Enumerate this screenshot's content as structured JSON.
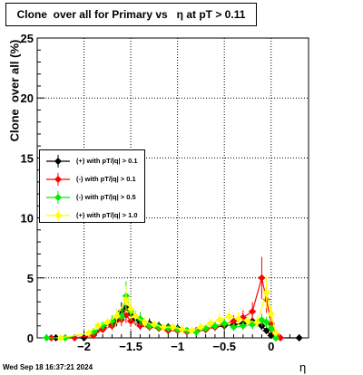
{
  "title": "Clone  over all for Primary vs   η at pT > 0.11",
  "footer": "Wed Sep 18 16:37:21 2024",
  "chart_data": {
    "type": "scatter",
    "xlabel": "η",
    "ylabel": "Clone  over all (%)",
    "xlim": [
      -2.5,
      0.4
    ],
    "ylim": [
      0,
      25
    ],
    "x_ticks": [
      -2,
      -1.5,
      -1,
      -0.5,
      0
    ],
    "x_tick_labels": [
      "−2",
      "−1.5",
      "−1",
      "−0.5",
      "0"
    ],
    "y_ticks": [
      0,
      5,
      10,
      15,
      20,
      25
    ],
    "y_tick_labels": [
      "0",
      "5",
      "10",
      "15",
      "20",
      "25"
    ],
    "grid": true,
    "legend_position": "left-middle",
    "series": [
      {
        "name": "(+) with pT/|q| > 0.1",
        "color": "#000000",
        "points": [
          [
            -2.3,
            0
          ],
          [
            -2.0,
            0
          ],
          [
            -1.9,
            0.3
          ],
          [
            -1.8,
            0.9
          ],
          [
            -1.7,
            1.2
          ],
          [
            -1.65,
            1.5
          ],
          [
            -1.6,
            2.2
          ],
          [
            -1.55,
            2.5
          ],
          [
            -1.5,
            2.0
          ],
          [
            -1.45,
            1.6
          ],
          [
            -1.4,
            1.3
          ],
          [
            -1.3,
            1.2
          ],
          [
            -1.2,
            1.0
          ],
          [
            -1.1,
            0.9
          ],
          [
            -1.0,
            0.8
          ],
          [
            -0.9,
            0.6
          ],
          [
            -0.8,
            0.5
          ],
          [
            -0.7,
            0.7
          ],
          [
            -0.6,
            0.9
          ],
          [
            -0.5,
            1.0
          ],
          [
            -0.4,
            1.1
          ],
          [
            -0.3,
            1.2
          ],
          [
            -0.2,
            1.4
          ],
          [
            -0.1,
            1.0
          ],
          [
            -0.05,
            0.6
          ],
          [
            0.0,
            0.2
          ],
          [
            0.05,
            0
          ],
          [
            0.3,
            0
          ]
        ]
      },
      {
        "name": "(-) with pT/|q| > 0.1",
        "color": "#ff0000",
        "points": [
          [
            -2.35,
            0
          ],
          [
            -2.1,
            0
          ],
          [
            -1.9,
            0.2
          ],
          [
            -1.8,
            0.7
          ],
          [
            -1.7,
            1.0
          ],
          [
            -1.6,
            1.5
          ],
          [
            -1.55,
            1.9
          ],
          [
            -1.5,
            1.4
          ],
          [
            -1.4,
            1.0
          ],
          [
            -1.3,
            0.9
          ],
          [
            -1.2,
            0.8
          ],
          [
            -1.1,
            0.6
          ],
          [
            -1.0,
            0.6
          ],
          [
            -0.9,
            0.5
          ],
          [
            -0.8,
            0.6
          ],
          [
            -0.7,
            0.7
          ],
          [
            -0.6,
            0.9
          ],
          [
            -0.5,
            1.1
          ],
          [
            -0.4,
            1.4
          ],
          [
            -0.3,
            1.7
          ],
          [
            -0.2,
            2.2
          ],
          [
            -0.1,
            5.0
          ],
          [
            -0.05,
            3.2
          ],
          [
            0.0,
            1.2
          ],
          [
            0.05,
            0.3
          ],
          [
            0.1,
            0
          ]
        ]
      },
      {
        "name": "(-) with pT/|q| > 0.5",
        "color": "#00ee00",
        "points": [
          [
            -2.4,
            0
          ],
          [
            -2.2,
            0
          ],
          [
            -1.9,
            0.5
          ],
          [
            -1.8,
            1.0
          ],
          [
            -1.7,
            1.4
          ],
          [
            -1.6,
            1.8
          ],
          [
            -1.55,
            3.5
          ],
          [
            -1.5,
            2.2
          ],
          [
            -1.4,
            1.6
          ],
          [
            -1.3,
            1.0
          ],
          [
            -1.2,
            0.9
          ],
          [
            -1.1,
            0.8
          ],
          [
            -1.0,
            0.7
          ],
          [
            -0.9,
            0.6
          ],
          [
            -0.8,
            0.5
          ],
          [
            -0.7,
            0.8
          ],
          [
            -0.6,
            1.0
          ],
          [
            -0.5,
            1.2
          ],
          [
            -0.4,
            0.9
          ],
          [
            -0.3,
            1.0
          ],
          [
            -0.2,
            1.1
          ],
          [
            -0.1,
            1.5
          ],
          [
            -0.05,
            1.3
          ],
          [
            0.0,
            0.8
          ],
          [
            0.05,
            0
          ]
        ]
      },
      {
        "name": "(+) with pT/|q| > 1.0",
        "color": "#ffff00",
        "points": [
          [
            -2.25,
            0
          ],
          [
            -1.95,
            0.4
          ],
          [
            -1.85,
            1.0
          ],
          [
            -1.75,
            1.3
          ],
          [
            -1.65,
            1.8
          ],
          [
            -1.55,
            3.2
          ],
          [
            -1.5,
            2.4
          ],
          [
            -1.45,
            1.8
          ],
          [
            -1.35,
            1.3
          ],
          [
            -1.25,
            1.1
          ],
          [
            -1.15,
            0.9
          ],
          [
            -1.05,
            0.9
          ],
          [
            -0.95,
            0.7
          ],
          [
            -0.85,
            0.6
          ],
          [
            -0.75,
            0.9
          ],
          [
            -0.65,
            1.2
          ],
          [
            -0.55,
            1.5
          ],
          [
            -0.45,
            1.8
          ],
          [
            -0.35,
            1.6
          ],
          [
            -0.25,
            1.4
          ],
          [
            -0.15,
            1.3
          ],
          [
            -0.05,
            3.8
          ],
          [
            0.0,
            2.0
          ],
          [
            0.05,
            0.4
          ]
        ]
      }
    ]
  }
}
